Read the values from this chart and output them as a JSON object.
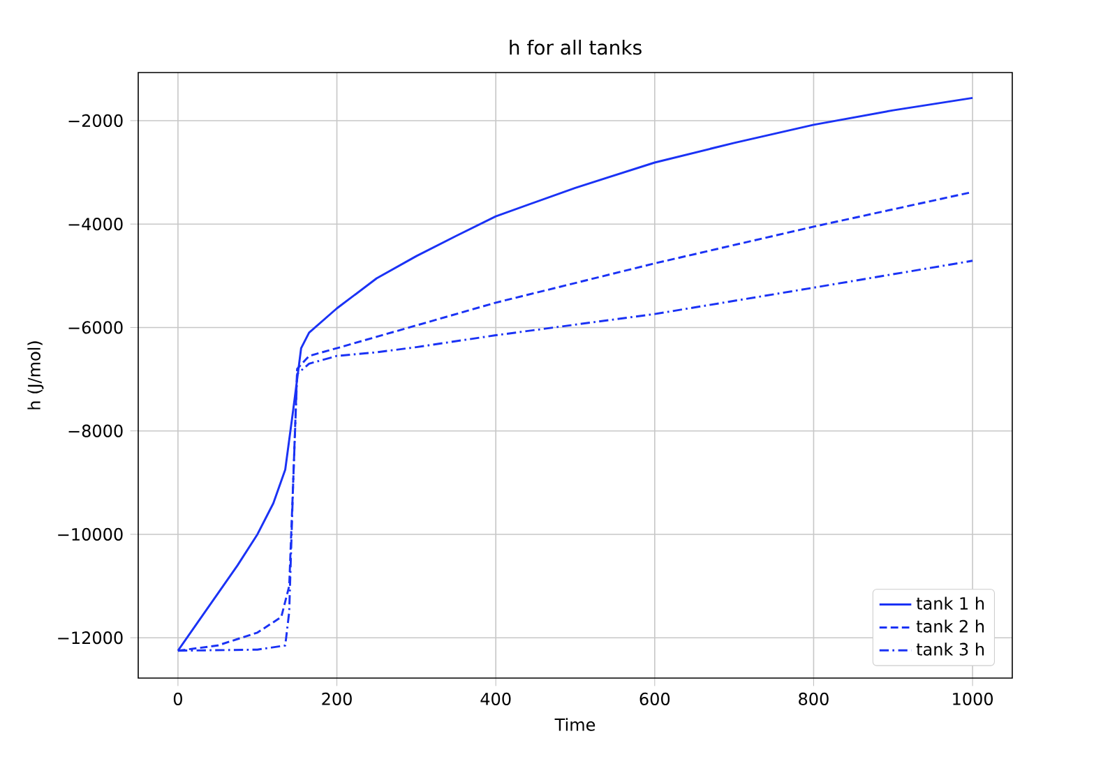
{
  "chart_data": {
    "type": "line",
    "title": "h for all tanks",
    "xlabel": "Time",
    "ylabel": "h (J/mol)",
    "xlim": [
      -50,
      1050
    ],
    "ylim": [
      -12780,
      -1070
    ],
    "xticks": [
      0,
      200,
      400,
      600,
      800,
      1000
    ],
    "yticks": [
      {
        "value": -12000,
        "label": "−12000"
      },
      {
        "value": -10000,
        "label": "−10000"
      },
      {
        "value": -8000,
        "label": "−8000"
      },
      {
        "value": -6000,
        "label": "−6000"
      },
      {
        "value": -4000,
        "label": "−4000"
      },
      {
        "value": -2000,
        "label": "−2000"
      }
    ],
    "grid": true,
    "legend": "bottom right",
    "series": [
      {
        "name": "tank 1 h",
        "color": "#1a32f5",
        "line_style": "solid",
        "x": [
          0,
          25,
          50,
          75,
          100,
          120,
          135,
          145,
          155,
          165,
          200,
          250,
          300,
          350,
          400,
          500,
          600,
          700,
          800,
          900,
          1000
        ],
        "values": [
          -12250,
          -11700,
          -11150,
          -10600,
          -10000,
          -9400,
          -8750,
          -7600,
          -6400,
          -6100,
          -5630,
          -5050,
          -4620,
          -4230,
          -3850,
          -3300,
          -2810,
          -2430,
          -2080,
          -1800,
          -1560
        ]
      },
      {
        "name": "tank 2 h",
        "color": "#1a32f5",
        "line_style": "dashed",
        "x": [
          0,
          50,
          100,
          130,
          140,
          145,
          150,
          165,
          200,
          400,
          600,
          800,
          1000
        ],
        "values": [
          -12250,
          -12150,
          -11900,
          -11600,
          -11000,
          -9000,
          -6800,
          -6550,
          -6400,
          -5520,
          -4760,
          -4050,
          -3380
        ]
      },
      {
        "name": "tank 3 h",
        "color": "#1a32f5",
        "line_style": "dashdot",
        "x": [
          0,
          100,
          135,
          140,
          145,
          150,
          165,
          200,
          250,
          300,
          400,
          600,
          800,
          1000
        ],
        "values": [
          -12250,
          -12230,
          -12150,
          -11500,
          -9000,
          -6900,
          -6700,
          -6550,
          -6480,
          -6380,
          -6150,
          -5740,
          -5230,
          -4710
        ]
      }
    ]
  }
}
